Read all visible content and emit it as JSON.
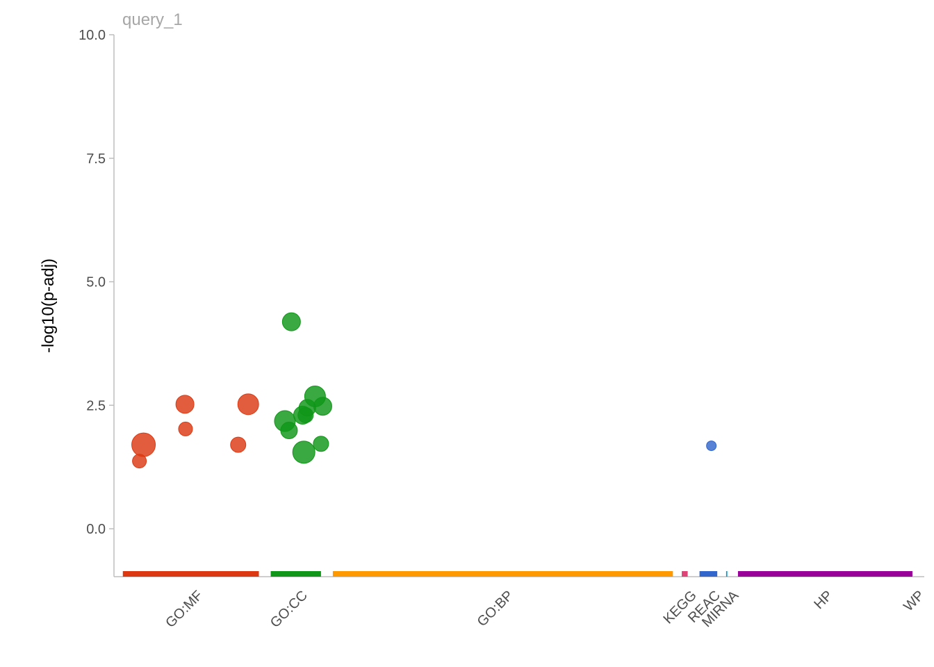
{
  "chart_data": {
    "type": "scatter",
    "title": "query_1",
    "ylabel": "-log10(p-adj)",
    "xlabel": "",
    "ylim": [
      -0.97,
      10.0
    ],
    "y_ticks": [
      "0.0",
      "2.5",
      "5.0",
      "7.5",
      "10.0"
    ],
    "y_tick_values": [
      0,
      2.5,
      5,
      7.5,
      10
    ],
    "grid": false,
    "legend": "none",
    "sources": [
      {
        "name": "GO:MF",
        "color": "#dc3912",
        "range": [
          0,
          2.3
        ]
      },
      {
        "name": "GO:CC",
        "color": "#109618",
        "range": [
          2.5,
          3.35
        ]
      },
      {
        "name": "GO:BP",
        "color": "#ff9900",
        "range": [
          3.55,
          9.3
        ]
      },
      {
        "name": "KEGG",
        "color": "#dd4477",
        "range": [
          9.45,
          9.55
        ]
      },
      {
        "name": "REAC",
        "color": "#3366cc",
        "range": [
          9.75,
          10.05
        ]
      },
      {
        "name": "MIRNA",
        "color": "#0099c6",
        "range": [
          10.2,
          10.22
        ]
      },
      {
        "name": "HP",
        "color": "#990099",
        "range": [
          10.4,
          13.35
        ]
      },
      {
        "name": "WP",
        "color": "#990099",
        "range": [
          13.35,
          13.35
        ]
      }
    ],
    "x_label_positions": [
      1.15,
      2.92,
      6.4,
      9.5,
      9.9,
      10.21,
      11.8,
      13.35
    ],
    "points": [
      {
        "source": "GO:MF",
        "x": 0.35,
        "y": 1.7,
        "size": 17
      },
      {
        "source": "GO:MF",
        "x": 0.28,
        "y": 1.37,
        "size": 10
      },
      {
        "source": "GO:MF",
        "x": 1.05,
        "y": 2.52,
        "size": 13
      },
      {
        "source": "GO:MF",
        "x": 1.06,
        "y": 2.02,
        "size": 10
      },
      {
        "source": "GO:MF",
        "x": 1.95,
        "y": 1.7,
        "size": 11
      },
      {
        "source": "GO:MF",
        "x": 2.12,
        "y": 2.52,
        "size": 15
      },
      {
        "source": "GO:CC",
        "x": 2.85,
        "y": 4.19,
        "size": 13
      },
      {
        "source": "GO:CC",
        "x": 2.74,
        "y": 2.18,
        "size": 15
      },
      {
        "source": "GO:CC",
        "x": 2.81,
        "y": 1.99,
        "size": 12
      },
      {
        "source": "GO:CC",
        "x": 3.06,
        "y": 1.55,
        "size": 16
      },
      {
        "source": "GO:CC",
        "x": 3.04,
        "y": 2.3,
        "size": 13
      },
      {
        "source": "GO:CC",
        "x": 3.09,
        "y": 2.3,
        "size": 11
      },
      {
        "source": "GO:CC",
        "x": 3.12,
        "y": 2.45,
        "size": 12
      },
      {
        "source": "GO:CC",
        "x": 3.25,
        "y": 2.68,
        "size": 15
      },
      {
        "source": "GO:CC",
        "x": 3.38,
        "y": 2.48,
        "size": 13
      },
      {
        "source": "GO:CC",
        "x": 3.35,
        "y": 1.72,
        "size": 11
      },
      {
        "source": "REAC",
        "x": 9.95,
        "y": 1.68,
        "size": 7
      }
    ],
    "point_colors": {
      "GO:MF": "#dc3912",
      "GO:CC": "#109618",
      "REAC": "#3366cc"
    }
  }
}
